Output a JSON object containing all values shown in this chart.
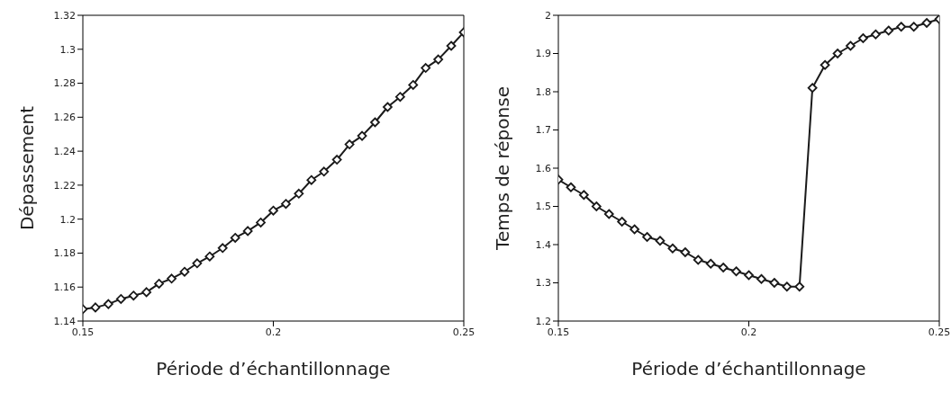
{
  "chart_data": [
    {
      "type": "line",
      "xlabel": "Période d’échantillonnage",
      "ylabel": "Dépassement",
      "x": [
        0.15,
        0.1533,
        0.1567,
        0.16,
        0.1633,
        0.1667,
        0.17,
        0.1733,
        0.1767,
        0.18,
        0.1833,
        0.1867,
        0.19,
        0.1933,
        0.1967,
        0.2,
        0.2033,
        0.2067,
        0.21,
        0.2133,
        0.2167,
        0.22,
        0.2233,
        0.2267,
        0.23,
        0.2333,
        0.2367,
        0.24,
        0.2433,
        0.2467,
        0.25
      ],
      "series": [
        {
          "color": "#1a1a1a",
          "values": [
            1.147,
            1.148,
            1.15,
            1.153,
            1.155,
            1.157,
            1.162,
            1.165,
            1.169,
            1.174,
            1.178,
            1.183,
            1.189,
            1.193,
            1.198,
            1.205,
            1.209,
            1.215,
            1.223,
            1.228,
            1.235,
            1.244,
            1.249,
            1.257,
            1.266,
            1.272,
            1.279,
            1.289,
            1.294,
            1.302,
            1.31
          ]
        }
      ],
      "xlim": [
        0.15,
        0.25
      ],
      "xticks": [
        0.15,
        0.2,
        0.25
      ],
      "ylim": [
        1.14,
        1.32
      ],
      "yticks": [
        1.14,
        1.16,
        1.18,
        1.2,
        1.22,
        1.24,
        1.26,
        1.28,
        1.3,
        1.32
      ],
      "grid": false,
      "legend": false,
      "marker": "diamond",
      "line_style": "solid"
    },
    {
      "type": "line",
      "xlabel": "Période d’échantillonnage",
      "ylabel": "Temps de réponse",
      "x": [
        0.15,
        0.1533,
        0.1567,
        0.16,
        0.1633,
        0.1667,
        0.17,
        0.1733,
        0.1767,
        0.18,
        0.1833,
        0.1867,
        0.19,
        0.1933,
        0.1967,
        0.2,
        0.2033,
        0.2067,
        0.21,
        0.2133,
        0.2167,
        0.22,
        0.2233,
        0.2267,
        0.23,
        0.2333,
        0.2367,
        0.24,
        0.2433,
        0.2467,
        0.25
      ],
      "series": [
        {
          "color": "#1a1a1a",
          "values": [
            1.57,
            1.55,
            1.53,
            1.5,
            1.48,
            1.46,
            1.44,
            1.42,
            1.41,
            1.39,
            1.38,
            1.36,
            1.35,
            1.34,
            1.33,
            1.32,
            1.31,
            1.3,
            1.29,
            1.29,
            1.81,
            1.87,
            1.9,
            1.92,
            1.94,
            1.95,
            1.96,
            1.97,
            1.97,
            1.98,
            1.99
          ]
        }
      ],
      "xlim": [
        0.15,
        0.25
      ],
      "xticks": [
        0.15,
        0.2,
        0.25
      ],
      "ylim": [
        1.2,
        2
      ],
      "yticks": [
        1.2,
        1.3,
        1.4,
        1.5,
        1.6,
        1.7,
        1.8,
        1.9,
        2
      ],
      "grid": false,
      "legend": false,
      "marker": "diamond",
      "line_style": "solid"
    }
  ]
}
